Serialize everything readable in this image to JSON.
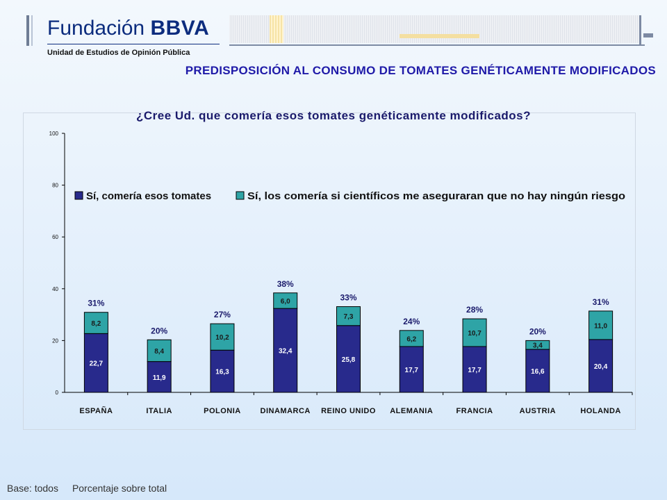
{
  "header": {
    "logo_name": "Fundación",
    "logo_brand": "BBVA",
    "logo_subtitle": "Unidad de Estudios de Opinión Pública"
  },
  "main_title": "PREDISPOSICIÓN AL CONSUMO DE TOMATES GENÉTICAMENTE MODIFICADOS",
  "chart_data": {
    "type": "bar",
    "stacked": true,
    "title": "¿Cree Ud. que comería esos tomates genéticamente modificados?",
    "categories": [
      "ESPAÑA",
      "ITALIA",
      "POLONIA",
      "DINAMARCA",
      "REINO UNIDO",
      "ALEMANIA",
      "FRANCIA",
      "AUSTRIA",
      "HOLANDA"
    ],
    "series": [
      {
        "name": "Sí, comería esos tomates",
        "color": "#282a8c",
        "values": [
          22.7,
          11.9,
          16.3,
          32.4,
          25.8,
          17.7,
          17.7,
          16.6,
          20.4
        ],
        "labels": [
          "22,7",
          "11,9",
          "16,3",
          "32,4",
          "25,8",
          "17,7",
          "17,7",
          "16,6",
          "20,4"
        ]
      },
      {
        "name": "Sí, los comería si científicos me aseguraran que no hay ningún riesgo",
        "color": "#2ea4a6",
        "values": [
          8.2,
          8.4,
          10.2,
          6.0,
          7.3,
          6.2,
          10.7,
          3.4,
          11.0
        ],
        "labels": [
          "8,2",
          "8,4",
          "10,2",
          "6,0",
          "7,3",
          "6,2",
          "10,7",
          "3,4",
          "11,0"
        ]
      }
    ],
    "totals": [
      "31%",
      "20%",
      "27%",
      "38%",
      "33%",
      "24%",
      "28%",
      "20%",
      "31%"
    ],
    "ylim": [
      0,
      100
    ],
    "yticks": [
      0,
      20,
      40,
      60,
      80,
      100
    ],
    "grid": false,
    "legend_position": "top"
  },
  "footer": {
    "base": "Base: todos",
    "note": "Porcentaje sobre total"
  }
}
